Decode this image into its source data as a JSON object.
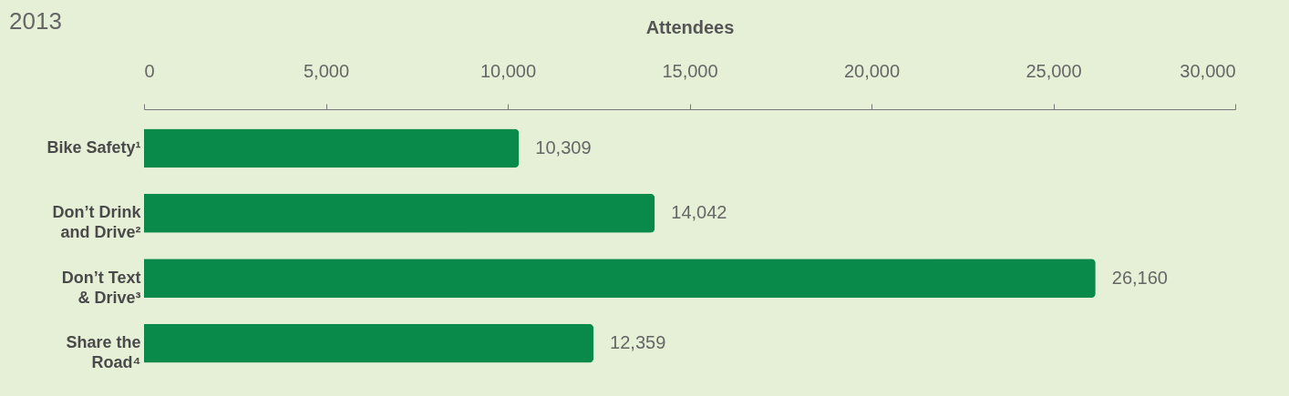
{
  "chart_data": {
    "type": "bar",
    "orientation": "horizontal",
    "title": "2013",
    "xlabel": "Attendees",
    "categories": [
      "Bike Safety¹",
      "Don’t Drink and Drive²",
      "Don’t Text & Drive³",
      "Share the Road⁴"
    ],
    "values": [
      10309,
      14042,
      26160,
      12359
    ],
    "color": "#0a8a4a",
    "xlim": [
      0,
      30000
    ],
    "xticks": [
      0,
      {
        "value": 5000,
        "label": "5,000"
      },
      {
        "value": 10000,
        "label": "10,000"
      },
      {
        "value": 15000,
        "label": "15,000"
      },
      {
        "value": 20000,
        "label": "20,000"
      },
      {
        "value": 25000,
        "label": "25,000"
      },
      {
        "value": 30000,
        "label": "30,000"
      }
    ],
    "value_labels": [
      "10,309",
      "14,042",
      "26,160",
      "12,359"
    ]
  }
}
